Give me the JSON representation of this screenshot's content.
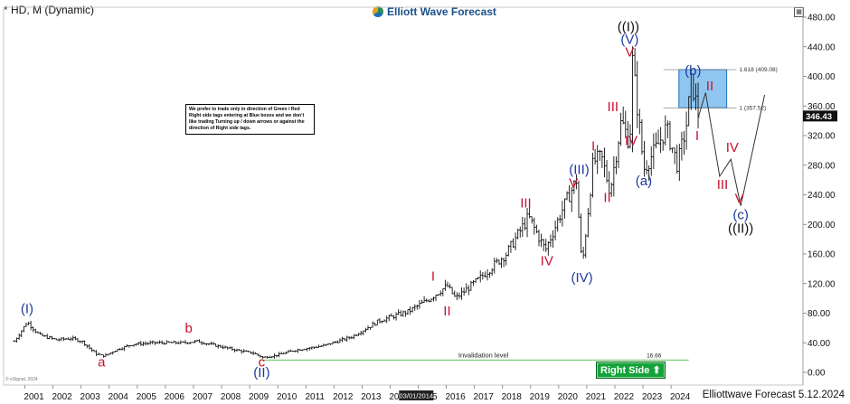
{
  "header": {
    "symbol": "* HD, M (Dynamic)"
  },
  "brand": {
    "name": "Elliott Wave Forecast"
  },
  "note": {
    "text": "We prefer to trade only in direction of Green / Red Right side tags entering at Blue boxes and we don't like trading Turning up / down arrows or against the direction of Right side tags."
  },
  "right_side": {
    "label": "Right Side",
    "icon": "up-arrow-icon"
  },
  "footer": {
    "text": "Elliottwave Forecast 5.12.2024"
  },
  "watermark": "© eSignal, 2024",
  "cursor_date": "03/01/2014",
  "chart_data": {
    "type": "candlestick",
    "ylim": [
      -20,
      490
    ],
    "y_ticks": [
      0,
      40,
      80,
      120,
      160,
      200,
      240,
      280,
      320,
      360,
      400,
      440,
      480
    ],
    "y_tick_labels": [
      "0.00",
      "40.00",
      "80.00",
      "120.00",
      "160.00",
      "200.00",
      "240.00",
      "280.00",
      "320.00",
      "360.00",
      "400.00",
      "440.00",
      "480.00"
    ],
    "x_range": [
      2000.0,
      2024.4
    ],
    "x_tick_labels": [
      "2001",
      "2002",
      "2003",
      "2004",
      "2005",
      "2006",
      "2007",
      "2008",
      "2009",
      "2010",
      "2011",
      "2012",
      "2013",
      "2014",
      "2015",
      "2016",
      "2017",
      "2018",
      "2019",
      "2020",
      "2021",
      "2022",
      "2023",
      "2024"
    ],
    "last_price": {
      "label": "346.43",
      "value": 346.43
    },
    "price_path": [
      [
        2000.0,
        42
      ],
      [
        2000.45,
        68
      ],
      [
        2000.9,
        50
      ],
      [
        2001.5,
        44
      ],
      [
        2002.0,
        46
      ],
      [
        2002.4,
        42
      ],
      [
        2002.9,
        25
      ],
      [
        2003.2,
        22
      ],
      [
        2003.6,
        30
      ],
      [
        2004.2,
        38
      ],
      [
        2005.0,
        40
      ],
      [
        2006.0,
        40
      ],
      [
        2006.5,
        42
      ],
      [
        2007.2,
        36
      ],
      [
        2007.9,
        30
      ],
      [
        2008.5,
        26
      ],
      [
        2008.85,
        20
      ],
      [
        2009.2,
        22
      ],
      [
        2010.0,
        30
      ],
      [
        2011.0,
        36
      ],
      [
        2012.0,
        48
      ],
      [
        2013.0,
        70
      ],
      [
        2014.0,
        82
      ],
      [
        2014.8,
        100
      ],
      [
        2015.4,
        117
      ],
      [
        2015.7,
        100
      ],
      [
        2016.5,
        125
      ],
      [
        2017.5,
        160
      ],
      [
        2018.3,
        210
      ],
      [
        2018.9,
        165
      ],
      [
        2019.5,
        220
      ],
      [
        2020.0,
        260
      ],
      [
        2020.2,
        140
      ],
      [
        2020.6,
        285
      ],
      [
        2020.9,
        290
      ],
      [
        2021.2,
        245
      ],
      [
        2021.6,
        340
      ],
      [
        2021.9,
        310
      ],
      [
        2022.0,
        420
      ],
      [
        2022.4,
        275
      ],
      [
        2022.8,
        300
      ],
      [
        2023.2,
        330
      ],
      [
        2023.6,
        280
      ],
      [
        2023.9,
        330
      ],
      [
        2024.1,
        395
      ],
      [
        2024.35,
        346
      ]
    ],
    "zones": [
      {
        "label": "1.618 (409.08)",
        "value": 409.08
      },
      {
        "label": "1 (357.52)",
        "value": 357.52
      }
    ],
    "invalidation": {
      "label": "Invalidation level",
      "value": 16.66,
      "value_label": "16.66"
    },
    "projection": [
      [
        2024.35,
        346
      ],
      [
        2024.6,
        378
      ],
      [
        2025.1,
        265
      ],
      [
        2025.5,
        288
      ],
      [
        2025.85,
        225
      ],
      [
        2026.7,
        375
      ]
    ],
    "wave_labels": [
      {
        "text": "(I)",
        "x": 2000.45,
        "y": 80,
        "color": "#1e3a9e"
      },
      {
        "text": "a",
        "x": 2003.1,
        "y": 8,
        "color": "#c8102e"
      },
      {
        "text": "b",
        "x": 2006.2,
        "y": 54,
        "color": "#c8102e"
      },
      {
        "text": "c",
        "x": 2008.8,
        "y": 8,
        "color": "#c8102e"
      },
      {
        "text": "(II)",
        "x": 2008.8,
        "y": -6,
        "color": "#1e3a9e"
      },
      {
        "text": "I",
        "x": 2014.9,
        "y": 124,
        "color": "#c8102e"
      },
      {
        "text": "II",
        "x": 2015.4,
        "y": 77,
        "color": "#c8102e"
      },
      {
        "text": "III",
        "x": 2018.2,
        "y": 223,
        "color": "#c8102e"
      },
      {
        "text": "IV",
        "x": 2018.95,
        "y": 145,
        "color": "#c8102e"
      },
      {
        "text": "V",
        "x": 2019.9,
        "y": 250,
        "color": "#c8102e"
      },
      {
        "text": "(III)",
        "x": 2020.1,
        "y": 268,
        "color": "#1e3a9e"
      },
      {
        "text": "(IV)",
        "x": 2020.2,
        "y": 122,
        "color": "#1e3a9e"
      },
      {
        "text": "I",
        "x": 2020.6,
        "y": 300,
        "color": "#c8102e"
      },
      {
        "text": "II",
        "x": 2021.1,
        "y": 230,
        "color": "#c8102e"
      },
      {
        "text": "III",
        "x": 2021.3,
        "y": 353,
        "color": "#c8102e"
      },
      {
        "text": "IV",
        "x": 2021.95,
        "y": 307,
        "color": "#c8102e"
      },
      {
        "text": "V",
        "x": 2021.9,
        "y": 427,
        "color": "#c8102e"
      },
      {
        "text": "(V)",
        "x": 2021.9,
        "y": 444,
        "color": "#1e3a9e"
      },
      {
        "text": "((I))",
        "x": 2021.85,
        "y": 461,
        "color": "#111111"
      },
      {
        "text": "(a)",
        "x": 2022.4,
        "y": 253,
        "color": "#1e3a9e"
      },
      {
        "text": "(b)",
        "x": 2024.15,
        "y": 402,
        "color": "#1e3a9e"
      },
      {
        "text": "I",
        "x": 2024.3,
        "y": 314,
        "color": "#c8102e"
      },
      {
        "text": "II",
        "x": 2024.75,
        "y": 381,
        "color": "#c8102e"
      },
      {
        "text": "III",
        "x": 2025.2,
        "y": 248,
        "color": "#c8102e"
      },
      {
        "text": "IV",
        "x": 2025.55,
        "y": 298,
        "color": "#c8102e"
      },
      {
        "text": "V",
        "x": 2025.8,
        "y": 229,
        "color": "#c8102e"
      },
      {
        "text": "(c)",
        "x": 2025.85,
        "y": 207,
        "color": "#1e3a9e"
      },
      {
        "text": "((II))",
        "x": 2025.85,
        "y": 189,
        "color": "#111111"
      }
    ]
  }
}
